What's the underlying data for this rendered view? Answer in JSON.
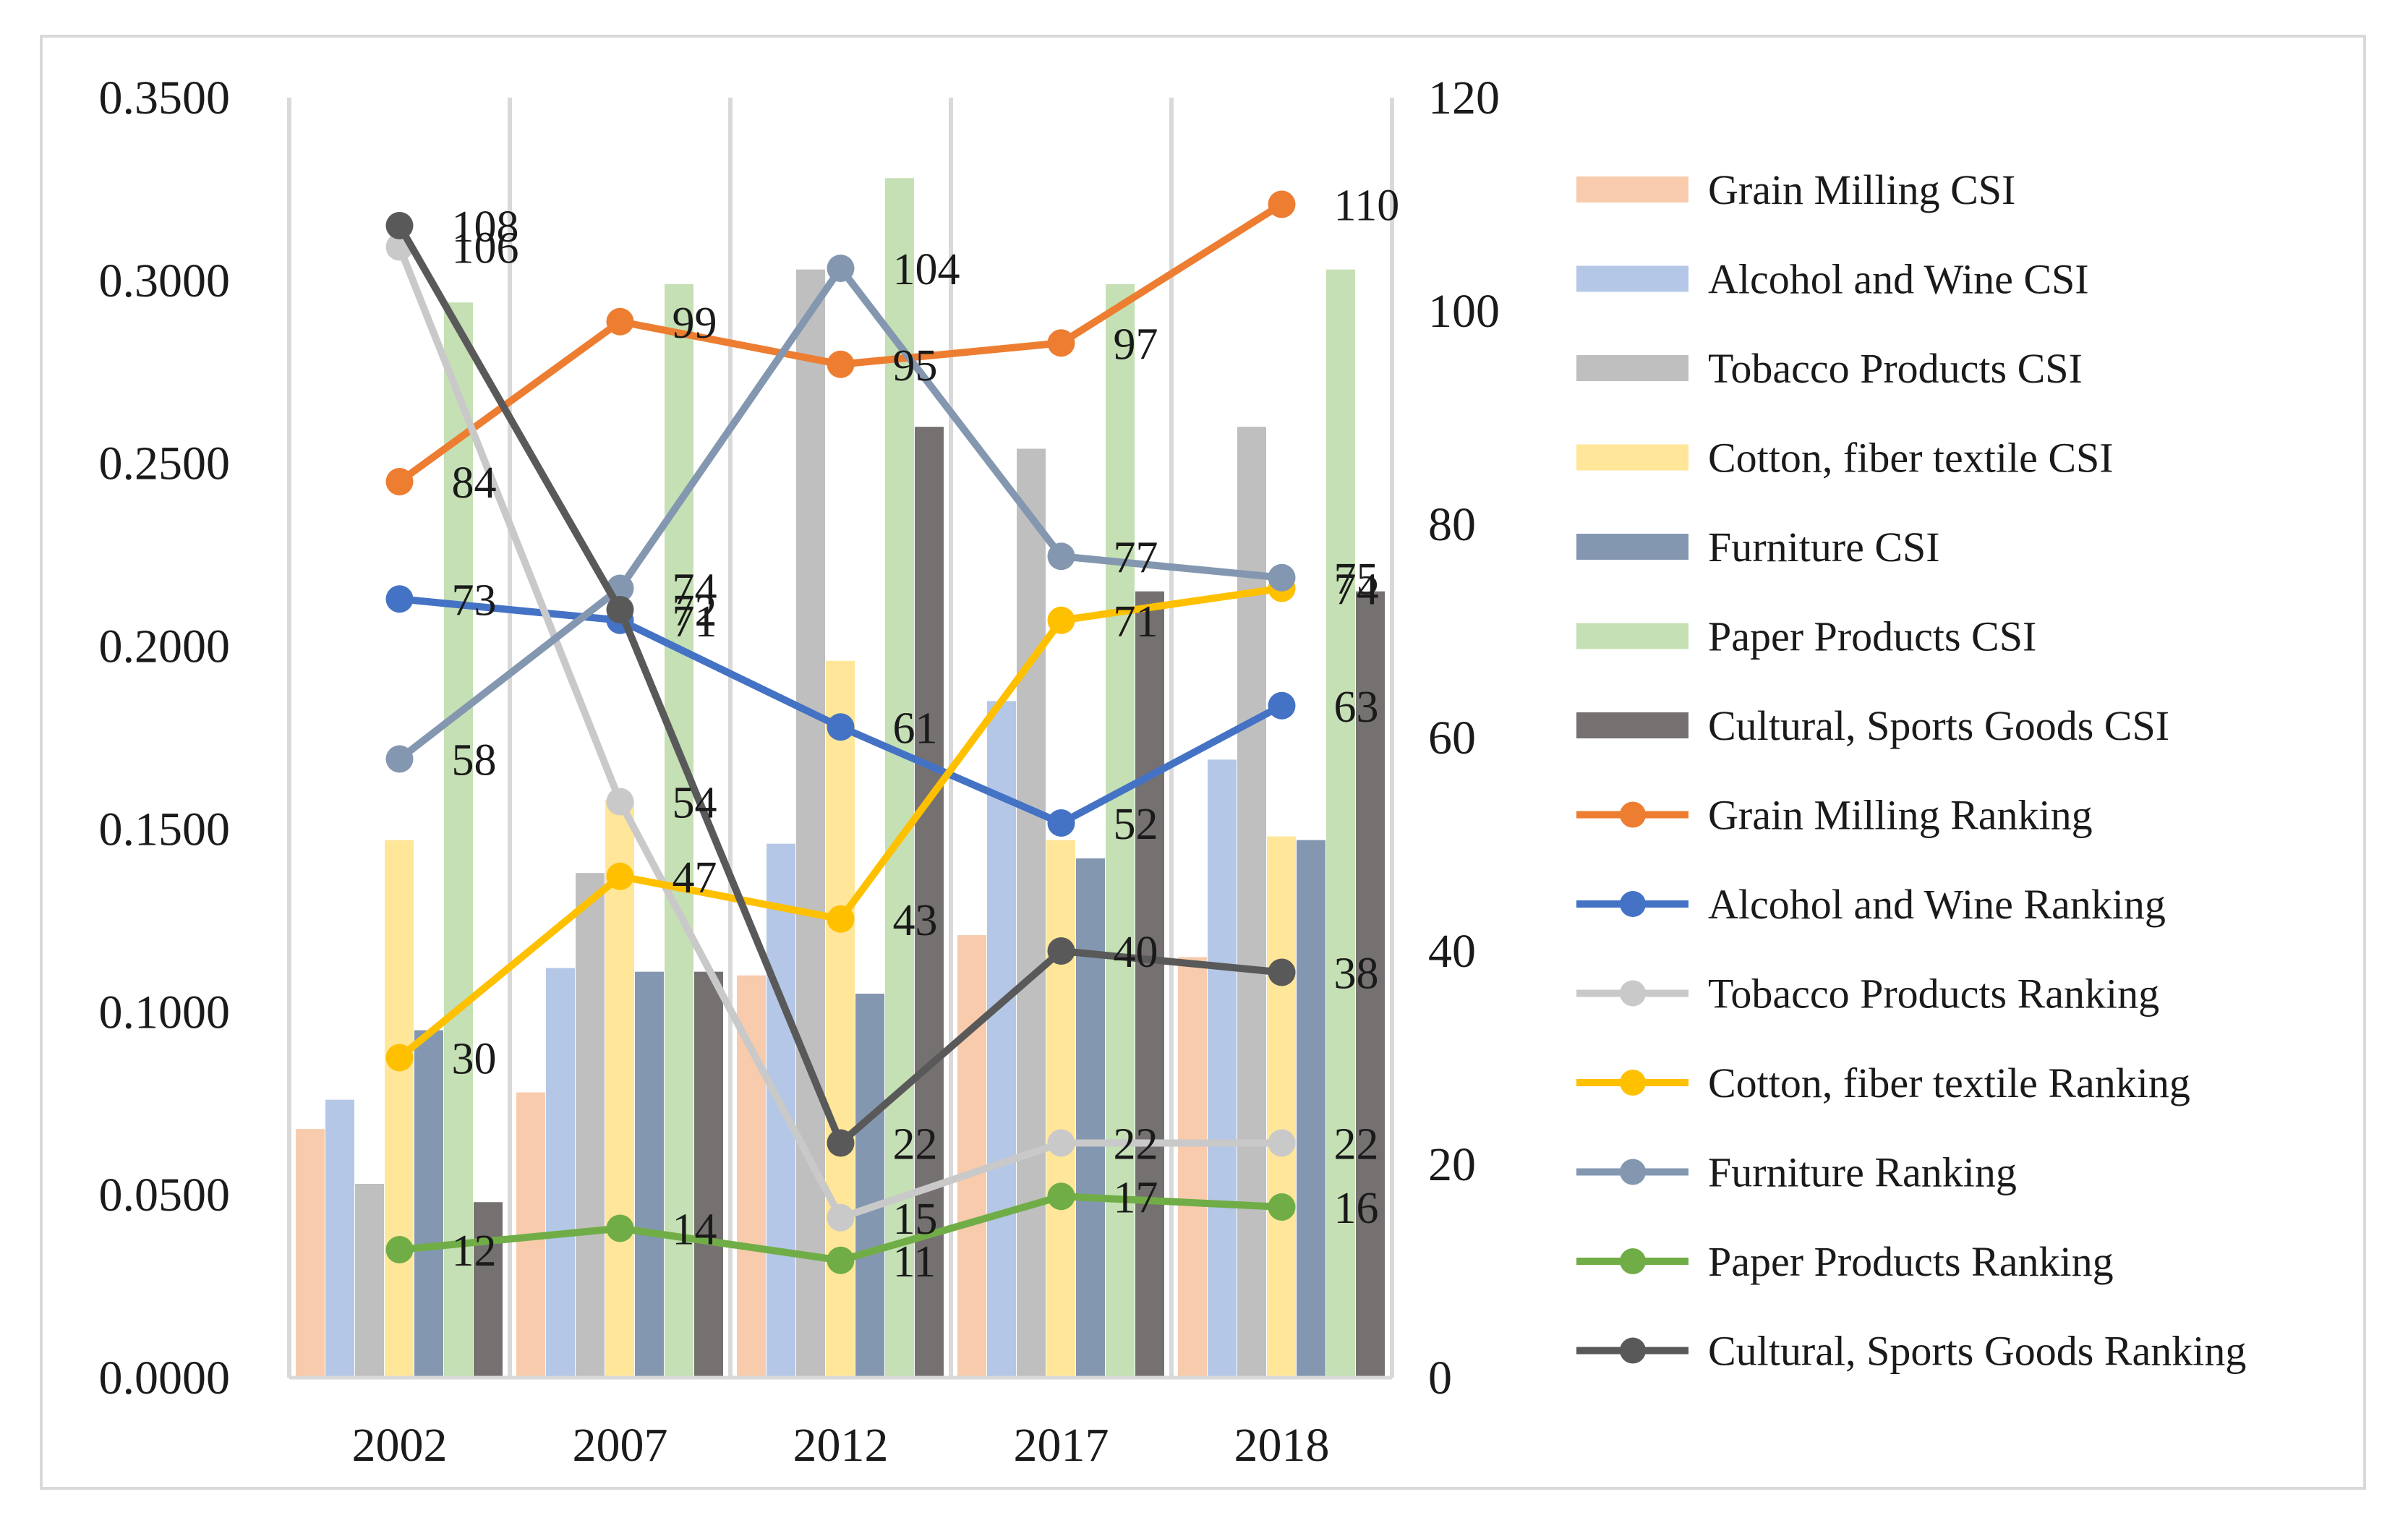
{
  "chart_data": {
    "type": "bar+line",
    "title": "",
    "categories": [
      "2002",
      "2007",
      "2012",
      "2017",
      "2018"
    ],
    "left_axis": {
      "ylim": [
        0,
        0.35
      ],
      "ticks": [
        "0.0000",
        "0.0500",
        "0.1000",
        "0.1500",
        "0.2000",
        "0.2500",
        "0.3000",
        "0.3500"
      ],
      "tick_values": [
        0,
        0.05,
        0.1,
        0.15,
        0.2,
        0.25,
        0.3,
        0.35
      ]
    },
    "right_axis": {
      "ylim": [
        0,
        120
      ],
      "ticks": [
        "0",
        "20",
        "40",
        "60",
        "80",
        "100",
        "120"
      ],
      "tick_values": [
        0,
        20,
        40,
        60,
        80,
        100,
        120
      ]
    },
    "grid": "vertical",
    "legend_position": "right",
    "bar_series": [
      {
        "name": "Grain Milling CSI",
        "color": "#f8cbad",
        "values": [
          0.068,
          0.078,
          0.11,
          0.121,
          0.115
        ]
      },
      {
        "name": "Alcohol and Wine CSI",
        "color": "#b4c7e7",
        "values": [
          0.076,
          0.112,
          0.146,
          0.185,
          0.169
        ]
      },
      {
        "name": "Tobacco Products CSI",
        "color": "#bfbfbf",
        "values": [
          0.053,
          0.138,
          0.303,
          0.254,
          0.26
        ]
      },
      {
        "name": "Cotton, fiber textile CSI",
        "color": "#ffe699",
        "values": [
          0.147,
          0.158,
          0.196,
          0.147,
          0.148
        ]
      },
      {
        "name": "Furniture CSI",
        "color": "#8497b0",
        "values": [
          0.095,
          0.111,
          0.105,
          0.142,
          0.147
        ]
      },
      {
        "name": "Paper Products CSI",
        "color": "#c5e0b4",
        "values": [
          0.294,
          0.299,
          0.328,
          0.299,
          0.303
        ]
      },
      {
        "name": "Cultural, Sports Goods CSI",
        "color": "#767171",
        "values": [
          0.048,
          0.111,
          0.26,
          0.215,
          0.215
        ]
      }
    ],
    "line_series": [
      {
        "name": "Grain Milling Ranking",
        "color": "#ed7d31",
        "values": [
          84,
          99,
          95,
          97,
          110
        ],
        "labels": [
          "84",
          "99",
          "95",
          "97",
          "110"
        ]
      },
      {
        "name": "Alcohol and Wine Ranking",
        "color": "#4472c4",
        "values": [
          73,
          71,
          61,
          52,
          63
        ],
        "labels": [
          "73",
          "71",
          "61",
          "52",
          "63"
        ]
      },
      {
        "name": "Tobacco Products Ranking",
        "color": "#c9c9c9",
        "values": [
          106,
          54,
          15,
          22,
          22
        ],
        "labels": [
          "106",
          "54",
          "15",
          "22",
          "22"
        ]
      },
      {
        "name": "Cotton, fiber textile Ranking",
        "color": "#ffc000",
        "values": [
          30,
          47,
          43,
          71,
          74
        ],
        "labels": [
          "30",
          "47",
          "43",
          "71",
          "74"
        ]
      },
      {
        "name": "Furniture Ranking",
        "color": "#8497b0",
        "values": [
          58,
          74,
          104,
          77,
          75
        ],
        "labels": [
          "58",
          "74",
          "104",
          "77",
          "75"
        ]
      },
      {
        "name": "Paper Products Ranking",
        "color": "#70ad47",
        "values": [
          12,
          14,
          11,
          17,
          16
        ],
        "labels": [
          "12",
          "14",
          "11",
          "17",
          "16"
        ]
      },
      {
        "name": "Cultural, Sports Goods Ranking",
        "color": "#595959",
        "values": [
          108,
          72,
          22,
          40,
          38
        ],
        "labels": [
          "108",
          "72",
          "22",
          "40",
          "38"
        ]
      }
    ]
  }
}
